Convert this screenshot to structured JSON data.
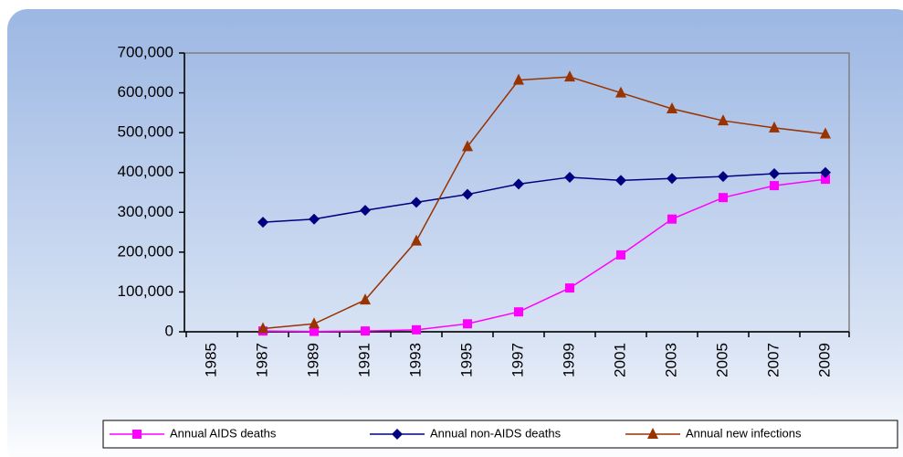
{
  "chart_data": {
    "type": "line",
    "categories": [
      "1985",
      "1987",
      "1989",
      "1991",
      "1993",
      "1995",
      "1997",
      "1999",
      "2001",
      "2003",
      "2005",
      "2007",
      "2009"
    ],
    "series": [
      {
        "name": "Annual AIDS deaths",
        "color": "#ff00ff",
        "marker": "square",
        "values": [
          null,
          2000,
          1000,
          2000,
          5000,
          20000,
          50000,
          110000,
          193000,
          283000,
          337000,
          367000,
          383000
        ]
      },
      {
        "name": "Annual non-AIDS deaths",
        "color": "#000080",
        "marker": "diamond",
        "values": [
          null,
          275000,
          283000,
          305000,
          325000,
          345000,
          371000,
          388000,
          380000,
          385000,
          390000,
          397000,
          400000
        ]
      },
      {
        "name": "Annual new infections",
        "color": "#993300",
        "marker": "triangle",
        "values": [
          null,
          8000,
          20000,
          80000,
          228000,
          465000,
          632000,
          640000,
          600000,
          560000,
          530000,
          512000,
          497000
        ]
      }
    ],
    "ylim": [
      0,
      700000
    ],
    "yticks": [
      0,
      {
        "value": 100000,
        "label": "100,000"
      },
      {
        "value": 200000,
        "label": "200,000"
      },
      {
        "value": 300000,
        "label": "300,000"
      },
      {
        "value": 400000,
        "label": "400,000"
      },
      {
        "value": 500000,
        "label": "500,000"
      },
      {
        "value": 600000,
        "label": "600,000"
      },
      {
        "value": 700000,
        "label": "700,000"
      }
    ],
    "legend": "bottom"
  }
}
